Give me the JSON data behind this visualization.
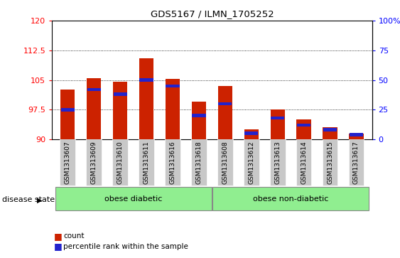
{
  "title": "GDS5167 / ILMN_1705252",
  "samples": [
    "GSM1313607",
    "GSM1313609",
    "GSM1313610",
    "GSM1313611",
    "GSM1313616",
    "GSM1313618",
    "GSM1313608",
    "GSM1313612",
    "GSM1313613",
    "GSM1313614",
    "GSM1313615",
    "GSM1313617"
  ],
  "count_values": [
    102.5,
    105.5,
    104.5,
    110.5,
    105.3,
    99.5,
    103.5,
    92.5,
    97.5,
    95.0,
    93.0,
    91.5
  ],
  "percentile_values": [
    25,
    42,
    38,
    50,
    45,
    20,
    30,
    5,
    18,
    12,
    8,
    4
  ],
  "y_min": 90,
  "y_max": 120,
  "y_ticks": [
    90,
    97.5,
    105,
    112.5,
    120
  ],
  "right_y_ticks": [
    0,
    25,
    50,
    75,
    100
  ],
  "group1_label": "obese diabetic",
  "group1_count": 6,
  "group2_label": "obese non-diabetic",
  "group2_count": 6,
  "disease_state_label": "disease state",
  "bar_color": "#cc2200",
  "blue_color": "#2222cc",
  "group_color": "#90ee90",
  "bg_color": "#c8c8c8",
  "count_legend": "count",
  "percentile_legend": "percentile rank within the sample"
}
